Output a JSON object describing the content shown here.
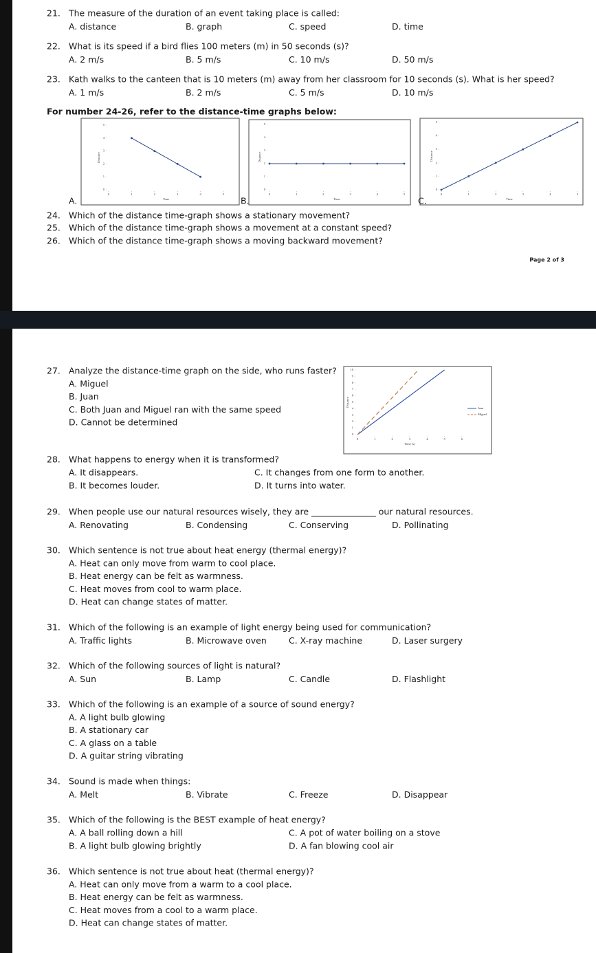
{
  "questions": [
    {
      "number": "21.",
      "text": "The measure of the duration of an event taking place is called:",
      "options": [
        "A. distance",
        "B. graph",
        "C. speed",
        "D. time"
      ]
    },
    {
      "number": "22.",
      "text": "What is its speed if a bird flies 100 meters (m) in 50 seconds (s)?",
      "options": [
        "A. 2 m/s",
        "B. 5 m/s",
        "C. 10 m/s",
        "D. 50 m/s"
      ]
    },
    {
      "number": "23.",
      "text": "Kath walks to the canteen that is 10 meters (m) away from her classroom for 10 seconds (s). What is her speed?",
      "options": [
        "A. 1 m/s",
        "B. 2 m/s",
        "C. 5 m/s",
        "D. 10 m/s"
      ]
    },
    {
      "number": "24.",
      "text": "Which of the distance time-graph shows a stationary movement?"
    },
    {
      "number": "25.",
      "text": "Which of the distance time-graph shows a movement at a constant speed?"
    },
    {
      "number": "26.",
      "text": "Which of the distance time-graph shows a moving backward movement?"
    },
    {
      "number": "27.",
      "text": "Analyze the distance-time graph on the side, who runs faster?",
      "options": [
        "A.  Miguel",
        "B.  Juan",
        "C.  Both Juan and Miguel ran with the same speed",
        "D.  Cannot be determined"
      ]
    },
    {
      "number": "28.",
      "text": "What happens to energy when it is transformed?",
      "options": [
        "A. It disappears.",
        "B. It becomes louder.",
        "C. It changes from one form to another.",
        "D. It turns into water."
      ]
    },
    {
      "number": "29.",
      "text": "When people use our natural resources wisely, they are _______________ our natural resources.",
      "options": [
        "A. Renovating",
        "B. Condensing",
        "C. Conserving",
        "D. Pollinating"
      ]
    },
    {
      "number": "30.",
      "text": "Which sentence is not true about heat energy (thermal energy)?",
      "options": [
        "A. Heat can only move from warm to cool place.",
        "B. Heat energy can be felt as warmness.",
        "C. Heat moves from cool to warm place.",
        "D. Heat can change states of matter."
      ]
    },
    {
      "number": "31.",
      "text": "Which of the following is an example of light energy being used for communication?",
      "options": [
        "A. Traffic lights",
        "B. Microwave oven",
        "C. X-ray machine",
        "D. Laser surgery"
      ]
    },
    {
      "number": "32.",
      "text": "Which of the following sources of light is natural?",
      "options": [
        "A. Sun",
        "B. Lamp",
        "C. Candle",
        "D. Flashlight"
      ]
    },
    {
      "number": "33.",
      "text": "Which of the following is an example of a source of sound energy?",
      "options": [
        "A. A light bulb glowing",
        "B. A stationary car",
        "C. A glass on a table",
        "D. A guitar string vibrating"
      ]
    },
    {
      "number": "34.",
      "text": "Sound is made when things:",
      "options": [
        "A. Melt",
        "B. Vibrate",
        "C. Freeze",
        "D. Disappear"
      ]
    },
    {
      "number": "35.",
      "text": "Which of the following is the BEST example of heat energy?",
      "options": [
        "A. A ball rolling down a hill",
        "B. A light bulb glowing brightly",
        "C. A pot of water boiling on a stove",
        "D. A fan blowing cool air"
      ]
    },
    {
      "number": "36.",
      "text": "Which sentence is not true about heat (thermal energy)?",
      "options": [
        "A. Heat can only move from a warm to a cool place.",
        "B. Heat energy can be felt as warmness.",
        "C. Heat moves from a cool to a warm place.",
        "D. Heat can change states of matter."
      ]
    }
  ],
  "section_heading": "For number 24-26, refer to the distance-time graphs below:",
  "graph_letters": [
    "A.",
    "B.",
    "C."
  ],
  "page_label": "Page 2 of 3",
  "graphs": [
    {
      "type": "line",
      "xlabel": "Time",
      "ylabel": "Distance",
      "xlim": [
        0,
        5
      ],
      "ylim": [
        0,
        5
      ],
      "xticks": [
        0,
        1,
        2,
        3,
        4,
        5
      ],
      "yticks": [
        0,
        1,
        2,
        3,
        4,
        5
      ],
      "series": [
        {
          "color": "#2e4a8c",
          "x": [
            1,
            2,
            3,
            4
          ],
          "values": [
            4,
            3,
            2,
            1
          ]
        }
      ]
    },
    {
      "type": "line",
      "xlabel": "Time",
      "ylabel": "Distance",
      "xlim": [
        0,
        5
      ],
      "ylim": [
        0,
        5
      ],
      "xticks": [
        0,
        1,
        2,
        3,
        4,
        5
      ],
      "yticks": [
        0,
        1,
        2,
        3,
        4,
        5
      ],
      "series": [
        {
          "color": "#2e4a8c",
          "x": [
            0,
            1,
            2,
            3,
            4,
            5
          ],
          "values": [
            2,
            2,
            2,
            2,
            2,
            2
          ]
        }
      ]
    },
    {
      "type": "line",
      "xlabel": "Time",
      "ylabel": "Distance",
      "xlim": [
        0,
        5
      ],
      "ylim": [
        0,
        5
      ],
      "xticks": [
        0,
        1,
        2,
        3,
        4,
        5
      ],
      "yticks": [
        0,
        1,
        2,
        3,
        4,
        5
      ],
      "series": [
        {
          "color": "#2e4a8c",
          "x": [
            0,
            1,
            2,
            3,
            4,
            5
          ],
          "values": [
            0,
            1,
            2,
            3,
            4,
            5
          ]
        }
      ]
    }
  ],
  "q27_chart": {
    "type": "line",
    "xlabel": "Time (s)",
    "ylabel": "Distance",
    "xlim": [
      0,
      6
    ],
    "ylim": [
      0,
      10
    ],
    "xticks": [
      0,
      1,
      2,
      3,
      4,
      5,
      6
    ],
    "yticks": [
      0,
      1,
      2,
      3,
      4,
      5,
      6,
      7,
      8,
      9,
      10
    ],
    "series": [
      {
        "name": "Juan",
        "color": "#3a5ba8",
        "dashed": false,
        "x": [
          0,
          5
        ],
        "values": [
          0,
          10
        ]
      },
      {
        "name": "Miguel",
        "color": "#c87a4a",
        "dashed": true,
        "x": [
          0,
          3.5
        ],
        "values": [
          0,
          10
        ]
      }
    ]
  }
}
